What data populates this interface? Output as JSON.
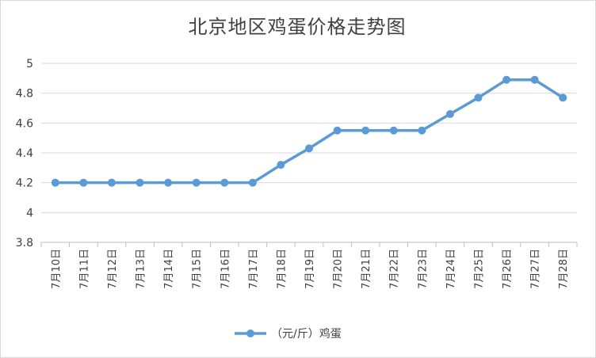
{
  "chart_data": {
    "type": "line",
    "title": "北京地区鸡蛋价格走势图",
    "categories": [
      "7月10日",
      "7月11日",
      "7月12日",
      "7月13日",
      "7月14日",
      "7月15日",
      "7月16日",
      "7月17日",
      "7月18日",
      "7月19日",
      "7月20日",
      "7月21日",
      "7月22日",
      "7月23日",
      "7月24日",
      "7月25日",
      "7月26日",
      "7月27日",
      "7月28日"
    ],
    "series": [
      {
        "name": "（元/斤）鸡蛋",
        "values": [
          4.2,
          4.2,
          4.2,
          4.2,
          4.2,
          4.2,
          4.2,
          4.2,
          4.32,
          4.43,
          4.55,
          4.55,
          4.55,
          4.55,
          4.66,
          4.77,
          4.89,
          4.89,
          4.77
        ]
      }
    ],
    "ylim": [
      3.8,
      5
    ],
    "yticks": [
      "3.8",
      "4",
      "4.2",
      "4.4",
      "4.6",
      "4.8",
      "5"
    ],
    "grid": true,
    "legend_position": "bottom",
    "colors": {
      "line": "#5b9bd5",
      "grid": "#d9d9d9",
      "axis": "#bfbfbf",
      "text": "#404040"
    }
  }
}
